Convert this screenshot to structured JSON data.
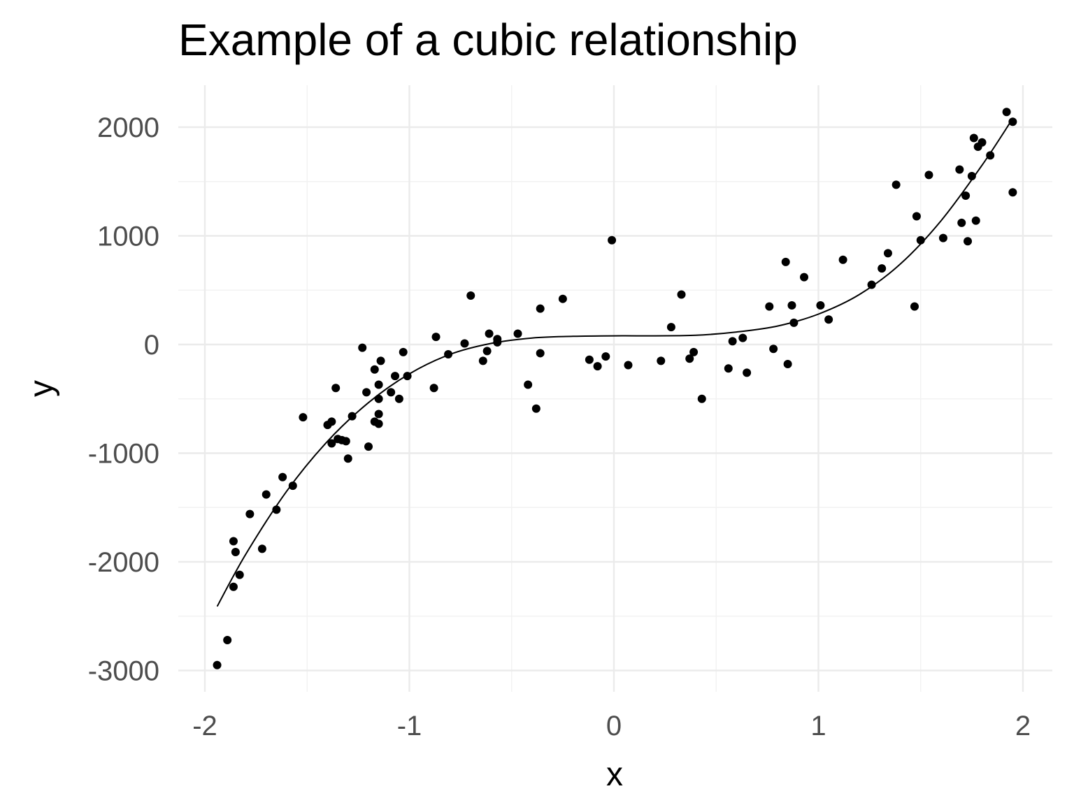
{
  "chart_data": {
    "type": "scatter",
    "title": "Example of a cubic relationship",
    "xlabel": "x",
    "ylabel": "y",
    "xlim": [
      -2.1,
      2.15
    ],
    "ylim": [
      -3200,
      2400
    ],
    "x_ticks": [
      -2,
      -1,
      0,
      1,
      2
    ],
    "x_tick_labels": [
      "-2",
      "-1",
      "0",
      "1",
      "2"
    ],
    "y_ticks": [
      -3000,
      -2000,
      -1000,
      0,
      1000,
      2000
    ],
    "y_tick_labels": [
      "-3000",
      "-2000",
      "-1000",
      "0",
      "1000",
      "2000"
    ],
    "x_minor_ticks": [
      -1.5,
      -0.5,
      0.5,
      1.5
    ],
    "y_minor_ticks": [
      -2500,
      -1500,
      -500,
      500,
      1500
    ],
    "grid": true,
    "legend": "none",
    "points": [
      [
        -1.94,
        -2950
      ],
      [
        -1.89,
        -2720
      ],
      [
        -1.86,
        -2230
      ],
      [
        -1.85,
        -1910
      ],
      [
        -1.86,
        -1810
      ],
      [
        -1.83,
        -2120
      ],
      [
        -1.78,
        -1560
      ],
      [
        -1.72,
        -1880
      ],
      [
        -1.7,
        -1380
      ],
      [
        -1.65,
        -1520
      ],
      [
        -1.62,
        -1220
      ],
      [
        -1.57,
        -1300
      ],
      [
        -1.52,
        -670
      ],
      [
        -1.4,
        -740
      ],
      [
        -1.38,
        -710
      ],
      [
        -1.38,
        -910
      ],
      [
        -1.36,
        -400
      ],
      [
        -1.35,
        -870
      ],
      [
        -1.33,
        -880
      ],
      [
        -1.31,
        -890
      ],
      [
        -1.3,
        -1050
      ],
      [
        -1.28,
        -660
      ],
      [
        -1.23,
        -30
      ],
      [
        -1.21,
        -440
      ],
      [
        -1.2,
        -940
      ],
      [
        -1.17,
        -710
      ],
      [
        -1.17,
        -230
      ],
      [
        -1.15,
        -500
      ],
      [
        -1.15,
        -370
      ],
      [
        -1.15,
        -640
      ],
      [
        -1.15,
        -730
      ],
      [
        -1.14,
        -150
      ],
      [
        -1.09,
        -440
      ],
      [
        -1.07,
        -290
      ],
      [
        -1.05,
        -500
      ],
      [
        -1.03,
        -70
      ],
      [
        -1.01,
        -290
      ],
      [
        -0.88,
        -400
      ],
      [
        -0.87,
        70
      ],
      [
        -0.81,
        -90
      ],
      [
        -0.73,
        10
      ],
      [
        -0.7,
        450
      ],
      [
        -0.64,
        -150
      ],
      [
        -0.62,
        -60
      ],
      [
        -0.61,
        100
      ],
      [
        -0.57,
        50
      ],
      [
        -0.57,
        20
      ],
      [
        -0.47,
        100
      ],
      [
        -0.42,
        -370
      ],
      [
        -0.38,
        -590
      ],
      [
        -0.36,
        330
      ],
      [
        -0.36,
        -80
      ],
      [
        -0.25,
        420
      ],
      [
        -0.12,
        -140
      ],
      [
        -0.08,
        -200
      ],
      [
        -0.04,
        -110
      ],
      [
        -0.01,
        960
      ],
      [
        0.07,
        -190
      ],
      [
        0.23,
        -150
      ],
      [
        0.28,
        160
      ],
      [
        0.33,
        460
      ],
      [
        0.37,
        -130
      ],
      [
        0.39,
        -70
      ],
      [
        0.43,
        -500
      ],
      [
        0.56,
        -220
      ],
      [
        0.58,
        30
      ],
      [
        0.63,
        60
      ],
      [
        0.65,
        -260
      ],
      [
        0.76,
        350
      ],
      [
        0.78,
        -40
      ],
      [
        0.84,
        760
      ],
      [
        0.85,
        -180
      ],
      [
        0.87,
        360
      ],
      [
        0.88,
        200
      ],
      [
        0.93,
        620
      ],
      [
        1.01,
        360
      ],
      [
        1.05,
        230
      ],
      [
        1.12,
        780
      ],
      [
        1.26,
        550
      ],
      [
        1.31,
        700
      ],
      [
        1.34,
        840
      ],
      [
        1.38,
        1470
      ],
      [
        1.47,
        350
      ],
      [
        1.48,
        1180
      ],
      [
        1.5,
        960
      ],
      [
        1.54,
        1560
      ],
      [
        1.61,
        980
      ],
      [
        1.69,
        1610
      ],
      [
        1.7,
        1120
      ],
      [
        1.72,
        1370
      ],
      [
        1.73,
        950
      ],
      [
        1.75,
        1550
      ],
      [
        1.76,
        1900
      ],
      [
        1.77,
        1140
      ],
      [
        1.78,
        1820
      ],
      [
        1.8,
        1860
      ],
      [
        1.84,
        1740
      ],
      [
        1.92,
        2140
      ],
      [
        1.95,
        1400
      ],
      [
        1.95,
        2050
      ]
    ],
    "fit_curve": {
      "type": "polynomial",
      "degree": 3,
      "x_range": [
        -1.94,
        1.95
      ],
      "x": [
        -1.94,
        -1.8,
        -1.6,
        -1.4,
        -1.2,
        -1.0,
        -0.8,
        -0.6,
        -0.4,
        -0.2,
        0.0,
        0.2,
        0.4,
        0.6,
        0.8,
        1.0,
        1.2,
        1.4,
        1.6,
        1.8,
        1.95
      ],
      "y": [
        -2410,
        -1930,
        -1350,
        -890,
        -535,
        -270,
        -90,
        10,
        60,
        75,
        80,
        80,
        85,
        115,
        170,
        280,
        460,
        740,
        1140,
        1650,
        2080
      ]
    }
  }
}
